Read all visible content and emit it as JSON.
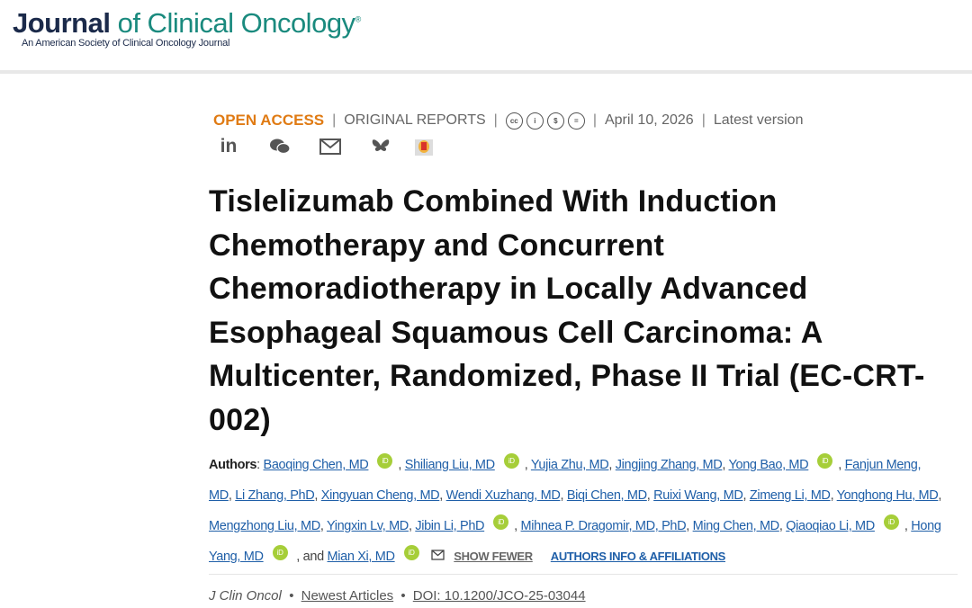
{
  "header": {
    "journal_bold": "Journal",
    "journal_rest": "of Clinical Oncology",
    "registered": "®",
    "subtitle": "An American Society of Clinical Oncology Journal"
  },
  "meta": {
    "access": "OPEN ACCESS",
    "type": "ORIGINAL REPORTS",
    "license_icons": [
      "cc",
      "by",
      "nc",
      "nd"
    ],
    "date": "April 10, 2026",
    "version": "Latest version"
  },
  "share": [
    "linkedin-icon",
    "wechat-icon",
    "email-icon",
    "bluesky-icon",
    "mendeley-icon"
  ],
  "title": "Tislelizumab Combined With Induction Chemotherapy and Concurrent Chemoradiotherapy in Locally Advanced Esophageal Squamous Cell Carcinoma: A Multicenter, Randomized, Phase II Trial (EC-CRT-002)",
  "authors_label": "Authors",
  "authors": [
    {
      "name": "Baoqing Chen, MD",
      "orcid": true
    },
    {
      "name": "Shiliang Liu, MD",
      "orcid": true
    },
    {
      "name": "Yujia Zhu, MD",
      "orcid": false
    },
    {
      "name": "Jingjing Zhang, MD",
      "orcid": false
    },
    {
      "name": "Yong Bao, MD",
      "orcid": true
    },
    {
      "name": "Fanjun Meng, MD",
      "orcid": false
    },
    {
      "name": "Li Zhang, PhD",
      "orcid": false
    },
    {
      "name": "Xingyuan Cheng, MD",
      "orcid": false
    },
    {
      "name": "Wendi Xuzhang, MD",
      "orcid": false
    },
    {
      "name": "Biqi Chen, MD",
      "orcid": false
    },
    {
      "name": "Ruixi Wang, MD",
      "orcid": false
    },
    {
      "name": "Zimeng Li, MD",
      "orcid": false
    },
    {
      "name": "Yonghong Hu, MD",
      "orcid": false
    },
    {
      "name": "Mengzhong Liu, MD",
      "orcid": false
    },
    {
      "name": "Yingxin Lv, MD",
      "orcid": false
    },
    {
      "name": "Jibin Li, PhD",
      "orcid": true
    },
    {
      "name": "Mihnea P. Dragomir, MD, PhD",
      "orcid": false
    },
    {
      "name": "Ming Chen, MD",
      "orcid": false
    },
    {
      "name": "Qiaoqiao Li, MD",
      "orcid": true
    },
    {
      "name": "Hong Yang, MD",
      "orcid": true
    },
    {
      "name": "Mian Xi, MD",
      "orcid": true
    }
  ],
  "orcid_label": "iD",
  "and_label": "and",
  "show_fewer": "SHOW FEWER",
  "authors_info": "AUTHORS INFO & AFFILIATIONS",
  "citation": {
    "journal": "J Clin Oncol",
    "section": "Newest Articles",
    "doi": "DOI: 10.1200/JCO-25-03044"
  }
}
